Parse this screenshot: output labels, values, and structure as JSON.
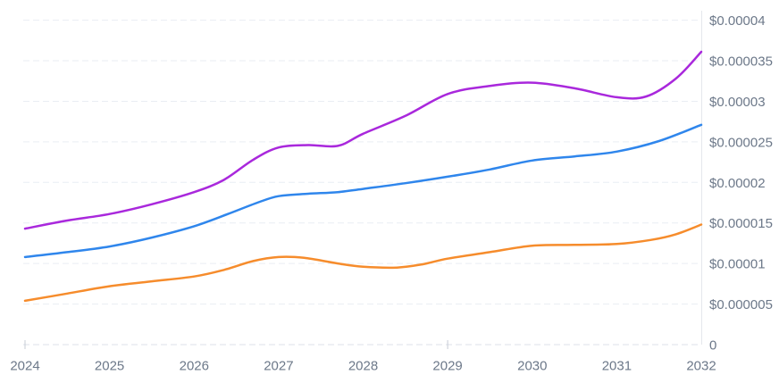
{
  "chart_data": {
    "type": "line",
    "title": "",
    "xlabel": "",
    "ylabel": "",
    "currency": "USD",
    "legend_position": "none",
    "grid": "horizontal-dashed",
    "xlim": [
      2024,
      2032
    ],
    "ylim": [
      0,
      4e-05
    ],
    "categories": [
      2024,
      2025,
      2026,
      2027,
      2028,
      2029,
      2030,
      2031,
      2032
    ],
    "x_tick_labels": [
      "2024",
      "2025",
      "2026",
      "2027",
      "2028",
      "2029",
      "2030",
      "2031",
      "2032"
    ],
    "x_tick_marks": [
      2024,
      2029
    ],
    "y_tick_labels": [
      "$0.00004",
      "$0.000035",
      "$0.00003",
      "$0.000025",
      "$0.00002",
      "$0.000015",
      "$0.00001",
      "$0.000005",
      "0"
    ],
    "y_tick_values": [
      4e-05,
      3.5e-05,
      3e-05,
      2.5e-05,
      2e-05,
      1.5e-05,
      1e-05,
      5e-06,
      0
    ],
    "series": [
      {
        "name": "purple-series",
        "color": "#A928DC",
        "values": [
          1.43e-05,
          1.61e-05,
          1.88e-05,
          2.43e-05,
          2.6e-05,
          3.09e-05,
          3.23e-05,
          3.05e-05,
          3.61e-05
        ]
      },
      {
        "name": "blue-series",
        "color": "#2F86EC",
        "values": [
          1.08e-05,
          1.21e-05,
          1.46e-05,
          1.83e-05,
          1.92e-05,
          2.07e-05,
          2.27e-05,
          2.38e-05,
          2.71e-05
        ]
      },
      {
        "name": "orange-series",
        "color": "#F68C2C",
        "values": [
          5.4e-06,
          7.2e-06,
          8.4e-06,
          1.08e-05,
          9.6e-06,
          1.06e-05,
          1.22e-05,
          1.24e-05,
          1.48e-05
        ]
      }
    ],
    "curve_detail": [
      {
        "name": "purple-series",
        "x": [
          2024,
          2024.5,
          2025,
          2025.5,
          2026,
          2026.35,
          2026.7,
          2027,
          2027.35,
          2027.7,
          2028,
          2028.5,
          2029,
          2029.5,
          2030,
          2030.5,
          2031,
          2031.35,
          2031.7,
          2032
        ],
        "y": [
          1.43e-05,
          1.53e-05,
          1.61e-05,
          1.73e-05,
          1.88e-05,
          2.03e-05,
          2.28e-05,
          2.43e-05,
          2.46e-05,
          2.45e-05,
          2.6e-05,
          2.82e-05,
          3.09e-05,
          3.19e-05,
          3.23e-05,
          3.16e-05,
          3.05e-05,
          3.06e-05,
          3.28e-05,
          3.61e-05
        ]
      },
      {
        "name": "blue-series",
        "x": [
          2024,
          2024.5,
          2025,
          2025.5,
          2026,
          2026.4,
          2026.75,
          2027,
          2027.35,
          2027.7,
          2028,
          2028.5,
          2029,
          2029.5,
          2030,
          2030.5,
          2031,
          2031.5,
          2032
        ],
        "y": [
          1.08e-05,
          1.14e-05,
          1.21e-05,
          1.32e-05,
          1.46e-05,
          1.61e-05,
          1.75e-05,
          1.83e-05,
          1.86e-05,
          1.88e-05,
          1.92e-05,
          1.99e-05,
          2.07e-05,
          2.16e-05,
          2.27e-05,
          2.32e-05,
          2.38e-05,
          2.51e-05,
          2.71e-05
        ]
      },
      {
        "name": "orange-series",
        "x": [
          2024,
          2024.5,
          2025,
          2025.5,
          2026,
          2026.35,
          2026.7,
          2027,
          2027.3,
          2027.7,
          2028,
          2028.4,
          2028.7,
          2029,
          2029.5,
          2030,
          2030.5,
          2031,
          2031.4,
          2031.7,
          2032
        ],
        "y": [
          5.4e-06,
          6.3e-06,
          7.2e-06,
          7.8e-06,
          8.4e-06,
          9.2e-06,
          1.03e-05,
          1.08e-05,
          1.07e-05,
          1e-05,
          9.6e-06,
          9.5e-06,
          9.9e-06,
          1.06e-05,
          1.14e-05,
          1.22e-05,
          1.23e-05,
          1.24e-05,
          1.29e-05,
          1.36e-05,
          1.48e-05
        ]
      }
    ]
  },
  "colors": {
    "background": "#ffffff",
    "gridline": "#E9EDF3",
    "zero_line": "#DCE0E8",
    "axis_line": "#E4E7EC",
    "tick": "#C7CCD6",
    "label_text": "#6C7889",
    "series_purple": "#A928DC",
    "series_blue": "#2F86EC",
    "series_orange": "#F68C2C"
  }
}
